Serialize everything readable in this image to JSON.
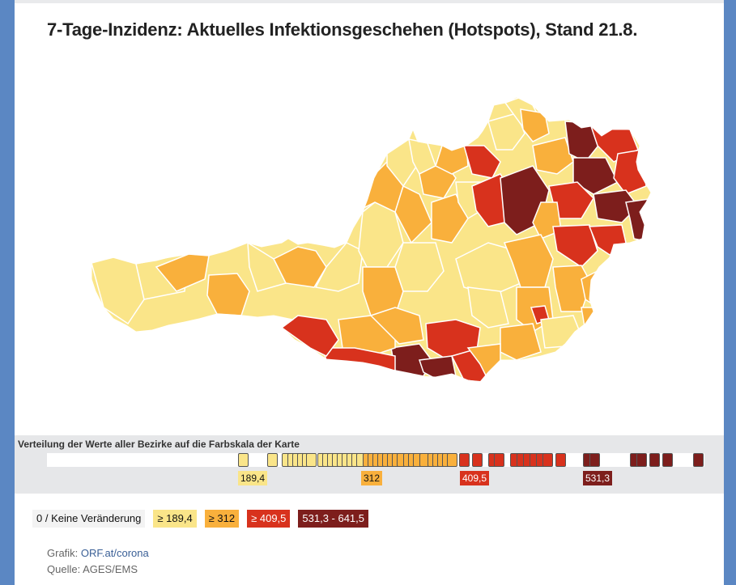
{
  "title": "7-Tage-Inzidenz: Aktuelles Infektionsgeschehen (Hotspots), Stand 21.8.",
  "colors": {
    "none": "#ffffff",
    "c1": "#fae589",
    "c2": "#f9b03c",
    "c3": "#d8321d",
    "c4": "#7d1e1c",
    "frame": "#5b87c3",
    "panel": "#e6e7e9"
  },
  "distribution": {
    "title": "Verteilung der Werte aller Bezirke auf die Farbskala der Karte",
    "ticks": [
      {
        "label": "189,4",
        "class": "c1"
      },
      {
        "label": "312",
        "class": "c2"
      },
      {
        "label": "409,5",
        "class": "c3"
      },
      {
        "label": "531,3",
        "class": "c4"
      }
    ]
  },
  "legend": [
    {
      "label": "0 / Keine Veränderung",
      "class": "none"
    },
    {
      "label": "≥ 189,4",
      "class": "c1"
    },
    {
      "label": "≥ 312",
      "class": "c2"
    },
    {
      "label": "≥ 409,5",
      "class": "c3"
    },
    {
      "label": "531,3 - 641,5",
      "class": "c4"
    }
  ],
  "footer": {
    "grafik_label": "Grafik:",
    "grafik_link": "ORF.at/corona",
    "quelle": "Quelle: AGES/EMS"
  }
}
